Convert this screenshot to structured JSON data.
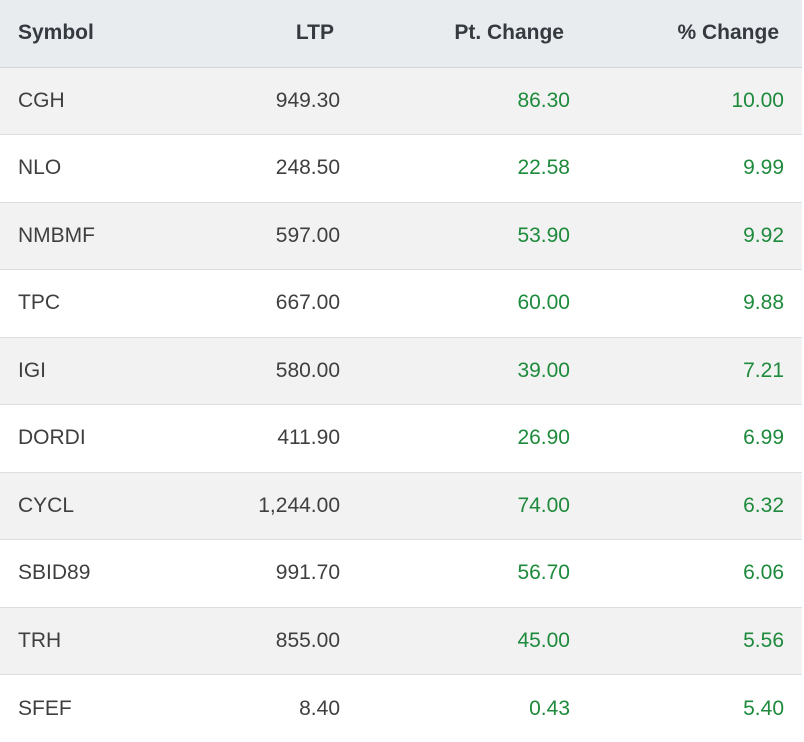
{
  "table": {
    "headers": {
      "symbol": "Symbol",
      "ltp": "LTP",
      "pt_change": "Pt. Change",
      "pct_change": "% Change"
    },
    "positive_color": "#1e8a3c",
    "rows": [
      {
        "symbol": "CGH",
        "ltp": "949.30",
        "pt_change": "86.30",
        "pct_change": "10.00"
      },
      {
        "symbol": "NLO",
        "ltp": "248.50",
        "pt_change": "22.58",
        "pct_change": "9.99"
      },
      {
        "symbol": "NMBMF",
        "ltp": "597.00",
        "pt_change": "53.90",
        "pct_change": "9.92"
      },
      {
        "symbol": "TPC",
        "ltp": "667.00",
        "pt_change": "60.00",
        "pct_change": "9.88"
      },
      {
        "symbol": "IGI",
        "ltp": "580.00",
        "pt_change": "39.00",
        "pct_change": "7.21"
      },
      {
        "symbol": "DORDI",
        "ltp": "411.90",
        "pt_change": "26.90",
        "pct_change": "6.99"
      },
      {
        "symbol": "CYCL",
        "ltp": "1,244.00",
        "pt_change": "74.00",
        "pct_change": "6.32"
      },
      {
        "symbol": "SBID89",
        "ltp": "991.70",
        "pt_change": "56.70",
        "pct_change": "6.06"
      },
      {
        "symbol": "TRH",
        "ltp": "855.00",
        "pt_change": "45.00",
        "pct_change": "5.56"
      },
      {
        "symbol": "SFEF",
        "ltp": "8.40",
        "pt_change": "0.43",
        "pct_change": "5.40"
      }
    ]
  }
}
